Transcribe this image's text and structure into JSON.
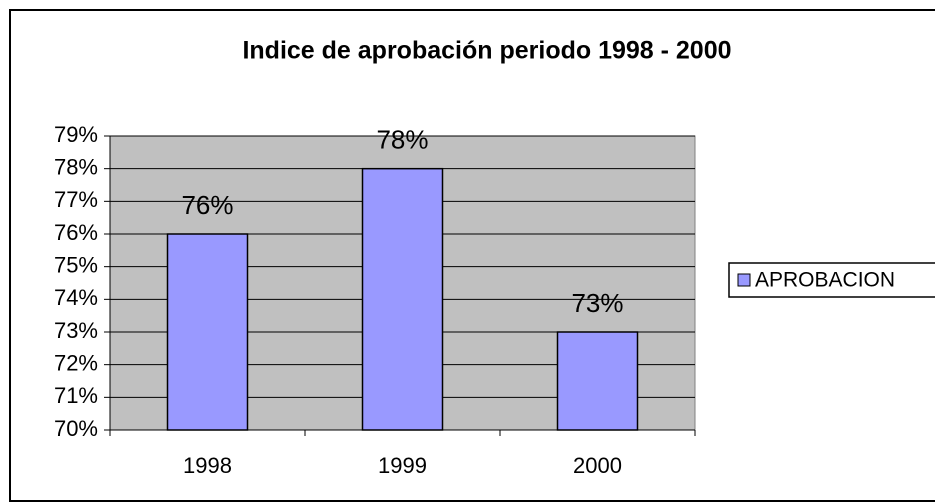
{
  "chart_data": {
    "type": "bar",
    "title": "Indice de aprobación periodo 1998 - 2000",
    "categories": [
      "1998",
      "1999",
      "2000"
    ],
    "series": [
      {
        "name": "APROBACION",
        "color": "#9999ff",
        "values": [
          76,
          78,
          73
        ],
        "value_labels": [
          "76%",
          "78%",
          "73%"
        ]
      }
    ],
    "ylim": [
      70,
      79
    ],
    "yticks": [
      {
        "value": 70,
        "label": "70%"
      },
      {
        "value": 71,
        "label": "71%"
      },
      {
        "value": 72,
        "label": "72%"
      },
      {
        "value": 73,
        "label": "73%"
      },
      {
        "value": 74,
        "label": "74%"
      },
      {
        "value": 75,
        "label": "75%"
      },
      {
        "value": 76,
        "label": "76%"
      },
      {
        "value": 77,
        "label": "77%"
      },
      {
        "value": 78,
        "label": "78%"
      },
      {
        "value": 79,
        "label": "79%"
      }
    ],
    "grid": true,
    "legend": "right"
  }
}
